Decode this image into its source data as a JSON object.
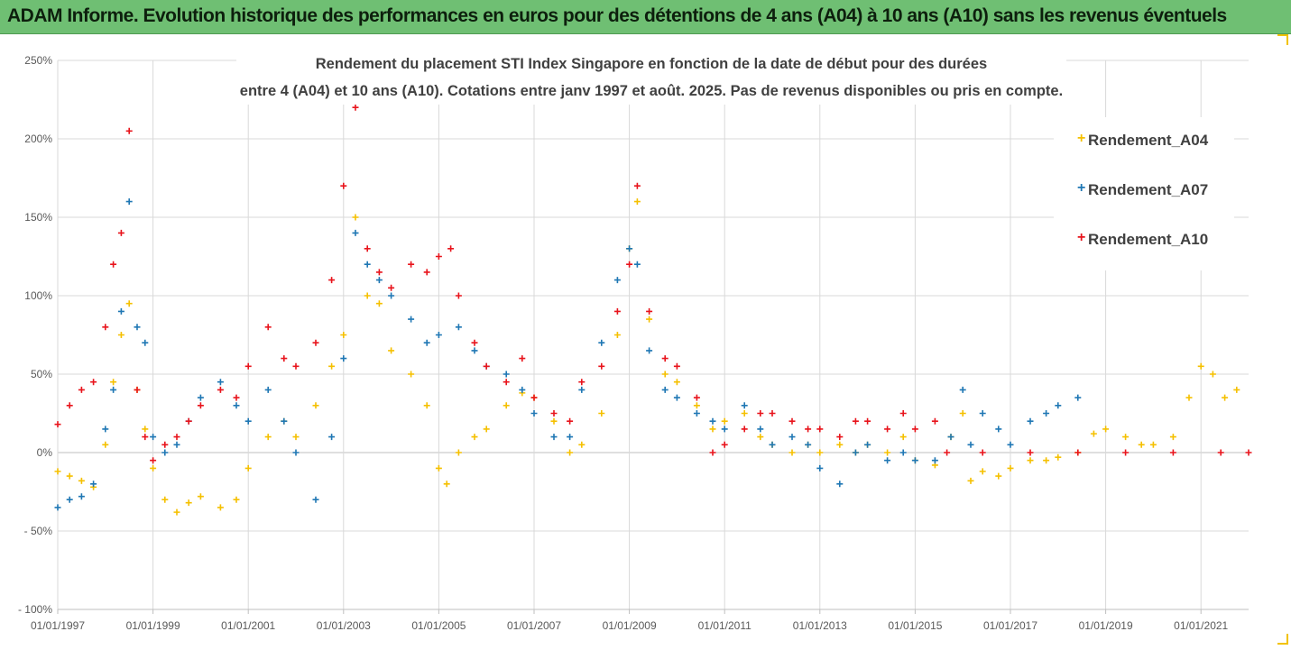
{
  "banner": {
    "title": "ADAM Informe. Evolution historique des performances en euros pour des détentions de 4 ans (A04) à 10 ans (A10) sans les revenus éventuels",
    "color": "#6fbf73"
  },
  "chart_data": {
    "type": "scatter",
    "title_line1": "Rendement du placement STI Index Singapore en fonction de la date de début pour des durées",
    "title_line2": "entre 4 (A04) et 10 ans (A10). Cotations entre janv 1997 et août. 2025. Pas de revenus disponibles ou pris en compte.",
    "xlabel": "",
    "ylabel": "",
    "x_tick_labels": [
      "01/01/1997",
      "01/01/1999",
      "01/01/2001",
      "01/01/2003",
      "01/01/2005",
      "01/01/2007",
      "01/01/2009",
      "01/01/2011",
      "01/01/2013",
      "01/01/2015",
      "01/01/2017",
      "01/01/2019",
      "01/01/2021"
    ],
    "y_tick_labels": [
      "250%",
      "200%",
      "150%",
      "100%",
      "50%",
      "0%",
      "- 50%",
      "- 100%"
    ],
    "xlim": [
      "1997-01-01",
      "2022-01-01"
    ],
    "ylim": [
      -100,
      250
    ],
    "y_unit": "%",
    "grid": true,
    "legend_position": "right",
    "marker": "+",
    "series": [
      {
        "name": "Rendement_A04",
        "color": "#f5c000",
        "points": [
          [
            "1997-01",
            -12
          ],
          [
            "1997-04",
            -15
          ],
          [
            "1997-07",
            -18
          ],
          [
            "1997-10",
            -22
          ],
          [
            "1998-01",
            5
          ],
          [
            "1998-03",
            45
          ],
          [
            "1998-05",
            75
          ],
          [
            "1998-07",
            95
          ],
          [
            "1998-09",
            40
          ],
          [
            "1998-11",
            15
          ],
          [
            "1999-01",
            -10
          ],
          [
            "1999-04",
            -30
          ],
          [
            "1999-07",
            -38
          ],
          [
            "1999-10",
            -32
          ],
          [
            "2000-01",
            -28
          ],
          [
            "2000-06",
            -35
          ],
          [
            "2000-10",
            -30
          ],
          [
            "2001-01",
            -10
          ],
          [
            "2001-06",
            10
          ],
          [
            "2001-10",
            20
          ],
          [
            "2002-01",
            10
          ],
          [
            "2002-06",
            30
          ],
          [
            "2002-10",
            55
          ],
          [
            "2003-01",
            75
          ],
          [
            "2003-04",
            150
          ],
          [
            "2003-07",
            100
          ],
          [
            "2003-10",
            95
          ],
          [
            "2004-01",
            65
          ],
          [
            "2004-06",
            50
          ],
          [
            "2004-10",
            30
          ],
          [
            "2005-01",
            -10
          ],
          [
            "2005-03",
            -20
          ],
          [
            "2005-06",
            0
          ],
          [
            "2005-10",
            10
          ],
          [
            "2006-01",
            15
          ],
          [
            "2006-06",
            30
          ],
          [
            "2006-10",
            38
          ],
          [
            "2007-01",
            35
          ],
          [
            "2007-06",
            20
          ],
          [
            "2007-10",
            0
          ],
          [
            "2008-01",
            5
          ],
          [
            "2008-06",
            25
          ],
          [
            "2008-10",
            75
          ],
          [
            "2009-01",
            130
          ],
          [
            "2009-03",
            160
          ],
          [
            "2009-06",
            85
          ],
          [
            "2009-10",
            50
          ],
          [
            "2010-01",
            45
          ],
          [
            "2010-06",
            30
          ],
          [
            "2010-10",
            15
          ],
          [
            "2011-01",
            20
          ],
          [
            "2011-06",
            25
          ],
          [
            "2011-10",
            10
          ],
          [
            "2012-01",
            5
          ],
          [
            "2012-06",
            0
          ],
          [
            "2012-10",
            5
          ],
          [
            "2013-01",
            0
          ],
          [
            "2013-06",
            5
          ],
          [
            "2013-10",
            0
          ],
          [
            "2014-01",
            5
          ],
          [
            "2014-06",
            0
          ],
          [
            "2014-10",
            10
          ],
          [
            "2015-01",
            -5
          ],
          [
            "2015-06",
            -8
          ],
          [
            "2015-10",
            10
          ],
          [
            "2016-01",
            25
          ],
          [
            "2016-03",
            -18
          ],
          [
            "2016-06",
            -12
          ],
          [
            "2016-10",
            -15
          ],
          [
            "2017-01",
            -10
          ],
          [
            "2017-06",
            -5
          ],
          [
            "2017-10",
            -5
          ],
          [
            "2018-01",
            -3
          ],
          [
            "2018-06",
            0
          ],
          [
            "2018-10",
            12
          ],
          [
            "2019-01",
            15
          ],
          [
            "2019-06",
            10
          ],
          [
            "2019-10",
            5
          ],
          [
            "2020-01",
            5
          ],
          [
            "2020-06",
            10
          ],
          [
            "2020-10",
            35
          ],
          [
            "2021-01",
            55
          ],
          [
            "2021-04",
            50
          ],
          [
            "2021-07",
            35
          ],
          [
            "2021-10",
            40
          ]
        ]
      },
      {
        "name": "Rendement_A07",
        "color": "#1f77b4",
        "points": [
          [
            "1997-01",
            -35
          ],
          [
            "1997-04",
            -30
          ],
          [
            "1997-07",
            -28
          ],
          [
            "1997-10",
            -20
          ],
          [
            "1998-01",
            15
          ],
          [
            "1998-03",
            40
          ],
          [
            "1998-05",
            90
          ],
          [
            "1998-07",
            160
          ],
          [
            "1998-09",
            80
          ],
          [
            "1998-11",
            70
          ],
          [
            "1999-01",
            10
          ],
          [
            "1999-04",
            0
          ],
          [
            "1999-07",
            5
          ],
          [
            "1999-10",
            20
          ],
          [
            "2000-01",
            35
          ],
          [
            "2000-06",
            45
          ],
          [
            "2000-10",
            30
          ],
          [
            "2001-01",
            20
          ],
          [
            "2001-06",
            40
          ],
          [
            "2001-10",
            20
          ],
          [
            "2002-01",
            0
          ],
          [
            "2002-06",
            -30
          ],
          [
            "2002-10",
            10
          ],
          [
            "2003-01",
            60
          ],
          [
            "2003-04",
            140
          ],
          [
            "2003-07",
            120
          ],
          [
            "2003-10",
            110
          ],
          [
            "2004-01",
            100
          ],
          [
            "2004-06",
            85
          ],
          [
            "2004-10",
            70
          ],
          [
            "2005-01",
            75
          ],
          [
            "2005-06",
            80
          ],
          [
            "2005-10",
            65
          ],
          [
            "2006-01",
            55
          ],
          [
            "2006-06",
            50
          ],
          [
            "2006-10",
            40
          ],
          [
            "2007-01",
            25
          ],
          [
            "2007-06",
            10
          ],
          [
            "2007-10",
            10
          ],
          [
            "2008-01",
            40
          ],
          [
            "2008-06",
            70
          ],
          [
            "2008-10",
            110
          ],
          [
            "2009-01",
            130
          ],
          [
            "2009-03",
            120
          ],
          [
            "2009-06",
            65
          ],
          [
            "2009-10",
            40
          ],
          [
            "2010-01",
            35
          ],
          [
            "2010-06",
            25
          ],
          [
            "2010-10",
            20
          ],
          [
            "2011-01",
            15
          ],
          [
            "2011-06",
            30
          ],
          [
            "2011-10",
            15
          ],
          [
            "2012-01",
            5
          ],
          [
            "2012-06",
            10
          ],
          [
            "2012-10",
            5
          ],
          [
            "2013-01",
            -10
          ],
          [
            "2013-06",
            -20
          ],
          [
            "2013-10",
            0
          ],
          [
            "2014-01",
            5
          ],
          [
            "2014-06",
            -5
          ],
          [
            "2014-10",
            0
          ],
          [
            "2015-01",
            -5
          ],
          [
            "2015-06",
            -5
          ],
          [
            "2015-10",
            10
          ],
          [
            "2016-01",
            40
          ],
          [
            "2016-03",
            5
          ],
          [
            "2016-06",
            25
          ],
          [
            "2016-10",
            15
          ],
          [
            "2017-01",
            5
          ],
          [
            "2017-06",
            20
          ],
          [
            "2017-10",
            25
          ],
          [
            "2018-01",
            30
          ],
          [
            "2018-06",
            35
          ]
        ]
      },
      {
        "name": "Rendement_A10",
        "color": "#e8141c",
        "points": [
          [
            "1997-01",
            18
          ],
          [
            "1997-04",
            30
          ],
          [
            "1997-07",
            40
          ],
          [
            "1997-10",
            45
          ],
          [
            "1998-01",
            80
          ],
          [
            "1998-03",
            120
          ],
          [
            "1998-05",
            140
          ],
          [
            "1998-07",
            205
          ],
          [
            "1998-09",
            40
          ],
          [
            "1998-11",
            10
          ],
          [
            "1999-01",
            -5
          ],
          [
            "1999-04",
            5
          ],
          [
            "1999-07",
            10
          ],
          [
            "1999-10",
            20
          ],
          [
            "2000-01",
            30
          ],
          [
            "2000-06",
            40
          ],
          [
            "2000-10",
            35
          ],
          [
            "2001-01",
            55
          ],
          [
            "2001-06",
            80
          ],
          [
            "2001-10",
            60
          ],
          [
            "2002-01",
            55
          ],
          [
            "2002-06",
            70
          ],
          [
            "2002-10",
            110
          ],
          [
            "2003-01",
            170
          ],
          [
            "2003-04",
            220
          ],
          [
            "2003-07",
            130
          ],
          [
            "2003-10",
            115
          ],
          [
            "2004-01",
            105
          ],
          [
            "2004-06",
            120
          ],
          [
            "2004-10",
            115
          ],
          [
            "2005-01",
            125
          ],
          [
            "2005-04",
            130
          ],
          [
            "2005-06",
            100
          ],
          [
            "2005-10",
            70
          ],
          [
            "2006-01",
            55
          ],
          [
            "2006-06",
            45
          ],
          [
            "2006-10",
            60
          ],
          [
            "2007-01",
            35
          ],
          [
            "2007-06",
            25
          ],
          [
            "2007-10",
            20
          ],
          [
            "2008-01",
            45
          ],
          [
            "2008-06",
            55
          ],
          [
            "2008-10",
            90
          ],
          [
            "2009-01",
            120
          ],
          [
            "2009-03",
            170
          ],
          [
            "2009-06",
            90
          ],
          [
            "2009-10",
            60
          ],
          [
            "2010-01",
            55
          ],
          [
            "2010-06",
            35
          ],
          [
            "2010-10",
            0
          ],
          [
            "2011-01",
            5
          ],
          [
            "2011-06",
            15
          ],
          [
            "2011-10",
            25
          ],
          [
            "2012-01",
            25
          ],
          [
            "2012-06",
            20
          ],
          [
            "2012-10",
            15
          ],
          [
            "2013-01",
            15
          ],
          [
            "2013-06",
            10
          ],
          [
            "2013-10",
            20
          ],
          [
            "2014-01",
            20
          ],
          [
            "2014-06",
            15
          ],
          [
            "2014-10",
            25
          ],
          [
            "2015-01",
            15
          ],
          [
            "2015-06",
            20
          ],
          [
            "2015-09",
            0
          ],
          [
            "2016-06",
            0
          ],
          [
            "2017-06",
            0
          ],
          [
            "2018-06",
            0
          ],
          [
            "2019-06",
            0
          ],
          [
            "2020-06",
            0
          ],
          [
            "2021-06",
            0
          ],
          [
            "2022-01",
            0
          ]
        ]
      }
    ]
  }
}
